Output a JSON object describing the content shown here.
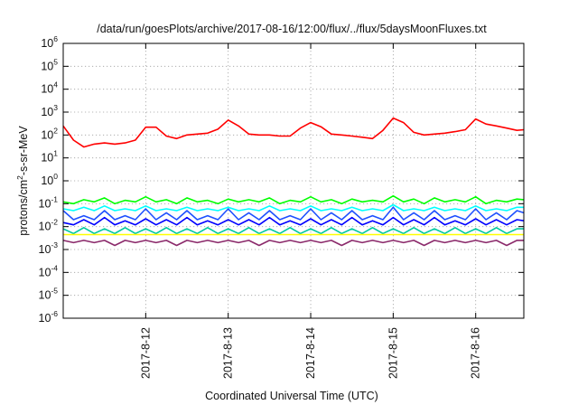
{
  "chart_data": {
    "type": "line",
    "title": "/data/run/goesPlots/archive/2017-08-16/12:00/flux/../flux/5daysMoonFluxes.txt",
    "xlabel": "Coordinated Universal Time (UTC)",
    "ylabel": {
      "base": "protons/cm",
      "sup": "2",
      "rest": "-s-sr-MeV"
    },
    "yscale": "log",
    "ylim_exponents": [
      -6,
      6
    ],
    "yticks": [
      {
        "base": "10",
        "exp": "6"
      },
      {
        "base": "10",
        "exp": "5"
      },
      {
        "base": "10",
        "exp": "4"
      },
      {
        "base": "10",
        "exp": "3"
      },
      {
        "base": "10",
        "exp": "2"
      },
      {
        "base": "10",
        "exp": "1"
      },
      {
        "base": "10",
        "exp": "0"
      },
      {
        "base": "10",
        "exp": "-1"
      },
      {
        "base": "10",
        "exp": "-2"
      },
      {
        "base": "10",
        "exp": "-3"
      },
      {
        "base": "10",
        "exp": "-4"
      },
      {
        "base": "10",
        "exp": "-5"
      },
      {
        "base": "10",
        "exp": "-6"
      }
    ],
    "xlim": [
      "2017-08-11 00:00",
      "2017-08-16 14:00"
    ],
    "xticks": [
      "2017-8-12",
      "2017-8-13",
      "2017-8-14",
      "2017-8-15",
      "2017-8-16"
    ],
    "grid": true,
    "x": [
      "2017-08-11 00:00",
      "2017-08-11 03:00",
      "2017-08-11 06:00",
      "2017-08-11 09:00",
      "2017-08-11 12:00",
      "2017-08-11 15:00",
      "2017-08-11 18:00",
      "2017-08-11 21:00",
      "2017-08-12 00:00",
      "2017-08-12 03:00",
      "2017-08-12 06:00",
      "2017-08-12 09:00",
      "2017-08-12 12:00",
      "2017-08-12 15:00",
      "2017-08-12 18:00",
      "2017-08-12 21:00",
      "2017-08-13 00:00",
      "2017-08-13 03:00",
      "2017-08-13 06:00",
      "2017-08-13 09:00",
      "2017-08-13 12:00",
      "2017-08-13 15:00",
      "2017-08-13 18:00",
      "2017-08-13 21:00",
      "2017-08-14 00:00",
      "2017-08-14 03:00",
      "2017-08-14 06:00",
      "2017-08-14 09:00",
      "2017-08-14 12:00",
      "2017-08-14 15:00",
      "2017-08-14 18:00",
      "2017-08-14 21:00",
      "2017-08-15 00:00",
      "2017-08-15 03:00",
      "2017-08-15 06:00",
      "2017-08-15 09:00",
      "2017-08-15 12:00",
      "2017-08-15 15:00",
      "2017-08-15 18:00",
      "2017-08-15 21:00",
      "2017-08-16 00:00",
      "2017-08-16 03:00",
      "2017-08-16 06:00",
      "2017-08-16 09:00",
      "2017-08-16 12:00",
      "2017-08-16 14:00"
    ],
    "series": [
      {
        "color": "#ff0000",
        "values": [
          250,
          60,
          30,
          40,
          45,
          40,
          45,
          60,
          220,
          220,
          90,
          70,
          100,
          110,
          120,
          180,
          450,
          250,
          110,
          100,
          100,
          90,
          90,
          200,
          350,
          230,
          110,
          100,
          90,
          80,
          70,
          160,
          550,
          350,
          130,
          100,
          110,
          120,
          140,
          170,
          500,
          300,
          250,
          200,
          160,
          170
        ]
      },
      {
        "color": "#00ff00",
        "values": [
          0.12,
          0.1,
          0.15,
          0.12,
          0.18,
          0.1,
          0.14,
          0.12,
          0.2,
          0.12,
          0.15,
          0.1,
          0.18,
          0.12,
          0.14,
          0.1,
          0.16,
          0.12,
          0.15,
          0.12,
          0.18,
          0.1,
          0.14,
          0.12,
          0.2,
          0.12,
          0.15,
          0.1,
          0.16,
          0.12,
          0.14,
          0.12,
          0.22,
          0.12,
          0.16,
          0.1,
          0.18,
          0.12,
          0.15,
          0.12,
          0.2,
          0.1,
          0.14,
          0.12,
          0.16,
          0.15
        ]
      },
      {
        "color": "#00ffff",
        "values": [
          0.06,
          0.05,
          0.07,
          0.05,
          0.08,
          0.05,
          0.06,
          0.05,
          0.08,
          0.05,
          0.06,
          0.05,
          0.07,
          0.05,
          0.06,
          0.05,
          0.07,
          0.05,
          0.06,
          0.05,
          0.08,
          0.05,
          0.06,
          0.05,
          0.08,
          0.05,
          0.06,
          0.05,
          0.07,
          0.05,
          0.06,
          0.05,
          0.09,
          0.05,
          0.06,
          0.05,
          0.07,
          0.05,
          0.06,
          0.05,
          0.08,
          0.05,
          0.06,
          0.05,
          0.07,
          0.07
        ]
      },
      {
        "color": "#1e50ff",
        "values": [
          0.05,
          0.02,
          0.03,
          0.02,
          0.05,
          0.02,
          0.03,
          0.02,
          0.06,
          0.02,
          0.04,
          0.02,
          0.05,
          0.02,
          0.03,
          0.02,
          0.06,
          0.02,
          0.04,
          0.02,
          0.05,
          0.02,
          0.03,
          0.02,
          0.06,
          0.02,
          0.04,
          0.02,
          0.05,
          0.02,
          0.03,
          0.02,
          0.07,
          0.02,
          0.04,
          0.02,
          0.05,
          0.02,
          0.03,
          0.02,
          0.06,
          0.02,
          0.04,
          0.02,
          0.05,
          0.04
        ]
      },
      {
        "color": "#0000ff",
        "values": [
          0.015,
          0.012,
          0.02,
          0.012,
          0.025,
          0.012,
          0.018,
          0.012,
          0.022,
          0.012,
          0.02,
          0.012,
          0.025,
          0.012,
          0.018,
          0.012,
          0.02,
          0.012,
          0.02,
          0.012,
          0.025,
          0.012,
          0.018,
          0.012,
          0.022,
          0.012,
          0.02,
          0.012,
          0.025,
          0.012,
          0.018,
          0.012,
          0.025,
          0.012,
          0.02,
          0.012,
          0.025,
          0.012,
          0.018,
          0.012,
          0.022,
          0.012,
          0.02,
          0.012,
          0.02,
          0.018
        ]
      },
      {
        "color": "#00c8a0",
        "values": [
          0.008,
          0.005,
          0.009,
          0.005,
          0.008,
          0.005,
          0.009,
          0.005,
          0.008,
          0.005,
          0.009,
          0.005,
          0.008,
          0.005,
          0.009,
          0.005,
          0.008,
          0.005,
          0.009,
          0.005,
          0.008,
          0.005,
          0.009,
          0.005,
          0.008,
          0.005,
          0.009,
          0.005,
          0.008,
          0.005,
          0.009,
          0.005,
          0.008,
          0.005,
          0.009,
          0.005,
          0.008,
          0.005,
          0.009,
          0.005,
          0.008,
          0.005,
          0.009,
          0.005,
          0.008,
          0.008
        ]
      },
      {
        "color": "#ffff00",
        "values": [
          0.0045,
          0.0045,
          0.0045,
          0.0045,
          0.0045,
          0.0045,
          0.0045,
          0.0045,
          0.0045,
          0.0045,
          0.0045,
          0.0045,
          0.0045,
          0.0045,
          0.0045,
          0.0045,
          0.0045,
          0.0045,
          0.0045,
          0.0045,
          0.0045,
          0.0045,
          0.0045,
          0.0045,
          0.0045,
          0.0045,
          0.0045,
          0.0045,
          0.0045,
          0.0045,
          0.0045,
          0.0045,
          0.0045,
          0.0045,
          0.0045,
          0.0045,
          0.0045,
          0.0045,
          0.0045,
          0.0045,
          0.0045,
          0.0045,
          0.0045,
          0.0045,
          0.0045,
          0.0045
        ]
      },
      {
        "color": "#8b2a6b",
        "values": [
          0.0025,
          0.002,
          0.0025,
          0.002,
          0.0025,
          0.0015,
          0.0025,
          0.002,
          0.0025,
          0.002,
          0.0025,
          0.0015,
          0.0025,
          0.002,
          0.0025,
          0.002,
          0.0025,
          0.002,
          0.0025,
          0.0015,
          0.0025,
          0.002,
          0.0025,
          0.002,
          0.0025,
          0.002,
          0.0025,
          0.0015,
          0.0025,
          0.002,
          0.0025,
          0.002,
          0.0025,
          0.002,
          0.0025,
          0.0015,
          0.0025,
          0.002,
          0.0025,
          0.002,
          0.0025,
          0.002,
          0.0025,
          0.0015,
          0.0025,
          0.0025
        ]
      }
    ]
  }
}
